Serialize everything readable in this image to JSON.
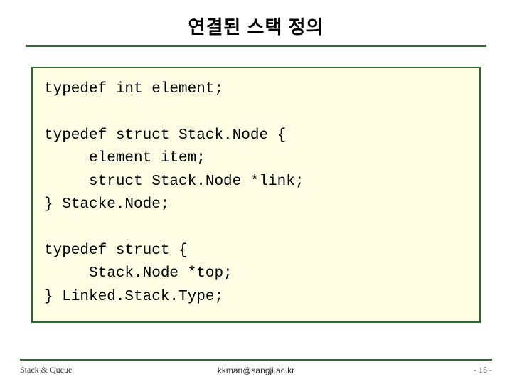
{
  "title": "연결된 스택 정의",
  "code": {
    "l1": "typedef int element;",
    "l2": "typedef struct Stack.Node {",
    "l3": "     element item;",
    "l4": "     struct Stack.Node *link;",
    "l5": "} Stacke.Node;",
    "l6": "typedef struct {",
    "l7": "     Stack.Node *top;",
    "l8": "} Linked.Stack.Type;"
  },
  "footer": {
    "left": "Stack & Queue",
    "center": "kkman@sangji.ac.kr",
    "right": "- 15 -"
  },
  "colors": {
    "accent": "#2a6b2f",
    "code_bg": "#fdfde3",
    "text": "#000000",
    "footer_text": "#333333",
    "page_bg": "#ffffff"
  }
}
